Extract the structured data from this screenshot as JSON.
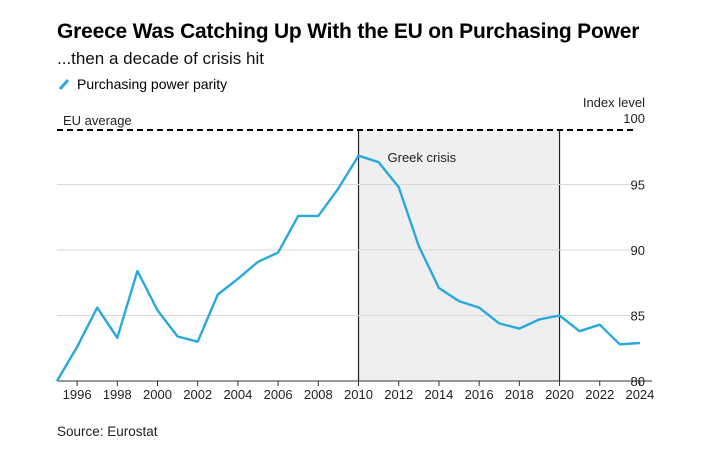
{
  "title": "Greece Was Catching Up With the EU on Purchasing Power",
  "subtitle": "...then a decade of crisis hit",
  "source": "Source: Eurostat",
  "colors": {
    "line": "#29a8e0",
    "shade": "#efefef",
    "grid": "#d9d9d9",
    "reference": "#000000"
  },
  "chart_data": {
    "type": "line",
    "series": [
      {
        "name": "Purchasing power parity",
        "x": [
          1995,
          1996,
          1997,
          1998,
          1999,
          2000,
          2001,
          2002,
          2003,
          2004,
          2005,
          2006,
          2007,
          2008,
          2009,
          2010,
          2011,
          2012,
          2013,
          2014,
          2015,
          2016,
          2017,
          2018,
          2019,
          2020,
          2021,
          2022,
          2023,
          2024
        ],
        "values": [
          80.0,
          82.6,
          85.6,
          83.3,
          88.4,
          85.4,
          83.4,
          83.0,
          86.6,
          87.8,
          89.1,
          89.8,
          92.6,
          92.6,
          94.7,
          97.2,
          96.7,
          94.8,
          90.3,
          87.1,
          86.1,
          85.6,
          84.4,
          84.0,
          84.7,
          85.0,
          83.8,
          84.3,
          82.8,
          82.9
        ]
      }
    ],
    "x_ticks": [
      "1996",
      "1998",
      "2000",
      "2002",
      "2004",
      "2006",
      "2008",
      "2010",
      "2012",
      "2014",
      "2016",
      "2018",
      "2020",
      "2022",
      "2024"
    ],
    "xlim": [
      1995,
      2024.6
    ],
    "y_ticks": [
      "80",
      "85",
      "90",
      "95",
      "100"
    ],
    "ylim": [
      80,
      100
    ],
    "ylabel": "Index level",
    "reference_line": {
      "value": 100,
      "label": "EU average"
    },
    "shaded_region": {
      "start": 2010,
      "end": 2020,
      "label": "Greek crisis"
    },
    "grid": true,
    "legend_position": "top-left"
  }
}
